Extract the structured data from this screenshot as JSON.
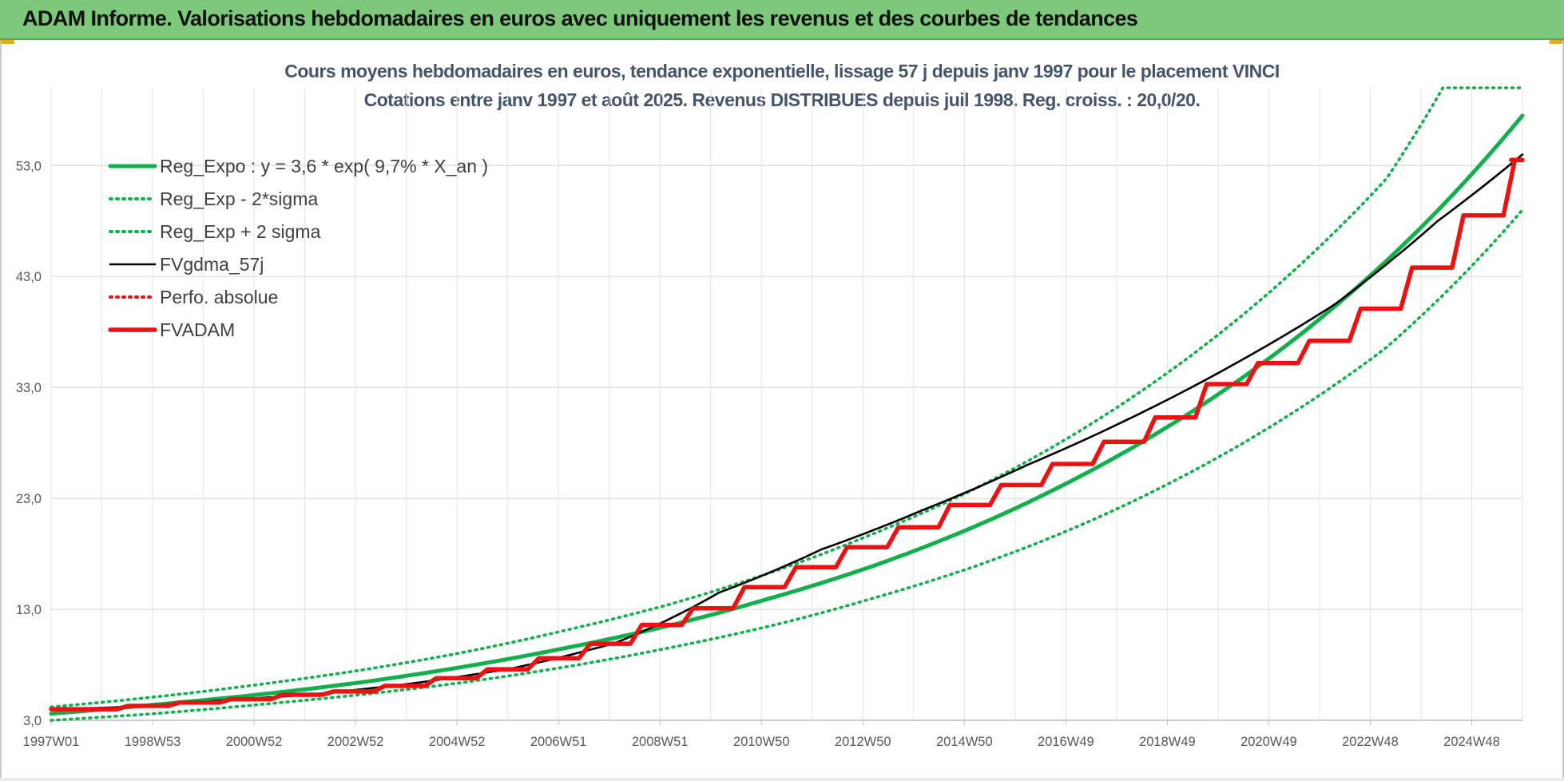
{
  "banner": {
    "title": "ADAM Informe. Valorisations hebdomadaires en euros avec uniquement les revenus et des courbes de tendances"
  },
  "colors": {
    "banner_bg": "#7ec87c",
    "trend_green": "#12b04c",
    "line_black": "#000000",
    "adam_red": "#ee1111",
    "title_text": "#44546a"
  },
  "chart_data": {
    "type": "line",
    "title_lines": [
      "Cours moyens hebdomadaires en euros, tendance exponentielle, lissage 57 j depuis janv 1997 pour le placement VINCI",
      "Cotations entre janv 1997 et août 2025.  Revenus DISTRIBUES depuis juil 1998.  Reg. croiss. : 20,0/20."
    ],
    "xlabel": "",
    "ylabel": "",
    "ylim": [
      3,
      60
    ],
    "y_ticks": [
      "3,0",
      "13,0",
      "23,0",
      "33,0",
      "43,0",
      "53,0"
    ],
    "x_ticks": [
      "1997W01",
      "1998W53",
      "2000W52",
      "2002W52",
      "2004W52",
      "2006W51",
      "2008W51",
      "2010W50",
      "2012W50",
      "2014W50",
      "2016W49",
      "2018W49",
      "2020W49",
      "2022W48",
      "2024W48"
    ],
    "x_range_years": [
      1997.0,
      2025.65
    ],
    "grid": true,
    "legend_position": "top-left",
    "series": [
      {
        "name": "Reg_Expo : y = 3,6 * exp( 9,7% *  X_an )",
        "style": "solid-thick",
        "color": "#12b04c",
        "x": [
          1997,
          1999,
          2001,
          2003,
          2005,
          2007,
          2009,
          2011,
          2013,
          2015,
          2017,
          2019,
          2021,
          2023,
          2025.65
        ],
        "y": [
          3.6,
          4.4,
          5.3,
          6.4,
          7.8,
          9.5,
          11.5,
          14.0,
          16.9,
          20.5,
          24.9,
          30.2,
          36.6,
          44.4,
          57.5
        ]
      },
      {
        "name": "Reg_Exp - 2*sigma",
        "style": "dotted",
        "color": "#12b04c",
        "x": [
          1997,
          1999,
          2001,
          2003,
          2005,
          2007,
          2009,
          2011,
          2013,
          2015,
          2017,
          2019,
          2021,
          2023,
          2025.65
        ],
        "y": [
          3.0,
          3.6,
          4.4,
          5.3,
          6.4,
          7.8,
          9.5,
          11.5,
          14.0,
          16.9,
          20.5,
          24.9,
          30.2,
          36.6,
          49.0
        ]
      },
      {
        "name": "Reg_Exp + 2 sigma",
        "style": "dotted",
        "color": "#12b04c",
        "x": [
          1997,
          1999,
          2001,
          2003,
          2005,
          2007,
          2009,
          2011,
          2013,
          2015,
          2017,
          2019,
          2021,
          2023,
          2024.1,
          2025.65
        ],
        "y": [
          4.2,
          5.1,
          6.2,
          7.5,
          9.1,
          11.1,
          13.4,
          16.3,
          19.8,
          23.9,
          29.0,
          35.2,
          42.7,
          51.8,
          60.0,
          60.0
        ]
      },
      {
        "name": "FVgdma_57j",
        "style": "solid",
        "color": "#000000",
        "x": [
          1997,
          1998.5,
          2000,
          2002,
          2004,
          2006,
          2008,
          2010,
          2012,
          2014,
          2016,
          2018,
          2020,
          2022,
          2024,
          2025.65
        ],
        "y": [
          4.0,
          4.2,
          4.7,
          5.3,
          6.3,
          7.7,
          10.0,
          14.5,
          18.4,
          22.0,
          26.0,
          30.2,
          35.0,
          40.5,
          48.0,
          54.0
        ]
      },
      {
        "name": "Perfo. absolue",
        "style": "dotted",
        "color": "#ee1111",
        "x": [
          1997,
          2025.65
        ],
        "y": [
          4.0,
          54.0
        ]
      },
      {
        "name": "FVADAM",
        "style": "step-thick",
        "color": "#ee1111",
        "x": [
          1997,
          1998.5,
          1999.5,
          2000.5,
          2001.5,
          2002.5,
          2003.5,
          2004.5,
          2005.5,
          2006.5,
          2007.5,
          2008.5,
          2009.5,
          2010.5,
          2011.5,
          2012.5,
          2013.5,
          2014.5,
          2015.5,
          2016.5,
          2017.5,
          2018.5,
          2019.5,
          2020.5,
          2021.5,
          2022.5,
          2023.5,
          2024.5,
          2025.5,
          2025.65
        ],
        "y": [
          4.0,
          4.3,
          4.6,
          4.9,
          5.3,
          5.6,
          6.1,
          6.8,
          7.6,
          8.6,
          9.9,
          11.6,
          13.1,
          15.0,
          16.8,
          18.6,
          20.4,
          22.4,
          24.2,
          26.1,
          28.1,
          30.3,
          33.3,
          35.2,
          37.2,
          40.1,
          43.8,
          48.5,
          53.5,
          53.5
        ]
      }
    ]
  }
}
